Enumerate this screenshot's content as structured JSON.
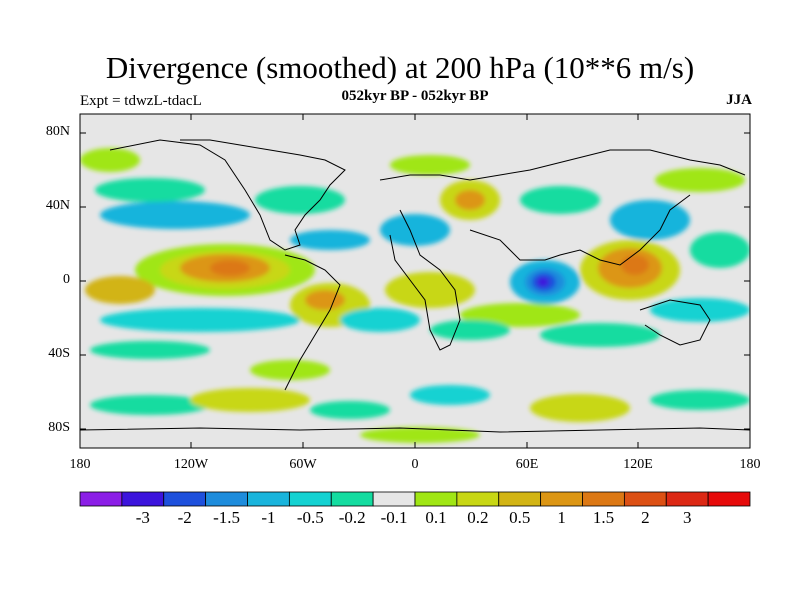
{
  "title": "Divergence (smoothed) at 200 hPa (10**6 m/s)",
  "experiment": "Expt = tdwzL-tdacL",
  "period": "052kyr BP - 052kyr BP",
  "season": "JJA",
  "lat_labels": [
    "80N",
    "40N",
    "0",
    "40S",
    "80S"
  ],
  "lon_labels": [
    "180",
    "120W",
    "60W",
    "0",
    "60E",
    "120E",
    "180"
  ],
  "colorbar": {
    "colors": [
      "#8b1ee6",
      "#3c14dc",
      "#1e50dc",
      "#1e8cdc",
      "#19b4dc",
      "#14d2d2",
      "#14dca0",
      "#e6e6e6",
      "#a0e614",
      "#c8d714",
      "#d2b414",
      "#dc9614",
      "#dc7814",
      "#dc5014",
      "#dc2814",
      "#e60a0a"
    ],
    "labels": [
      "-3",
      "-2",
      "-1.5",
      "-1",
      "-0.5",
      "-0.2",
      "-0.1",
      "0.1",
      "0.2",
      "0.5",
      "1",
      "1.5",
      "2",
      "3"
    ]
  }
}
